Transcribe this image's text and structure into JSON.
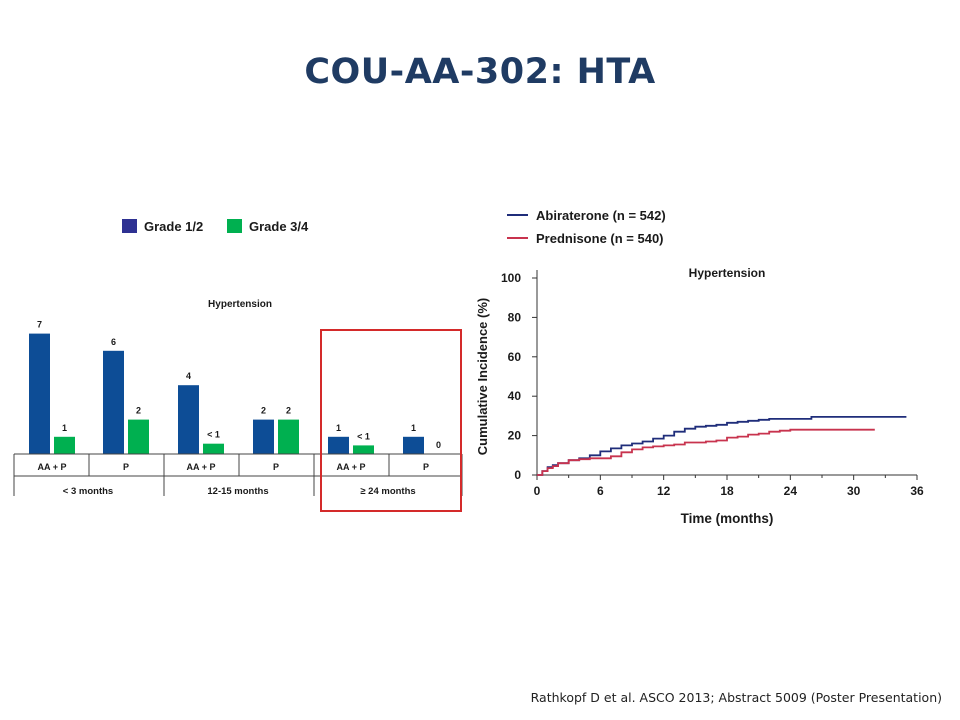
{
  "title": "COU-AA-302: HTA",
  "citation": "Rathkopf D et al. ASCO 2013; Abstract 5009 (Poster Presentation)",
  "colors": {
    "title": "#1f3b63",
    "grade12": "#0d4d96",
    "grade12_legend": "#2e3192",
    "grade34": "#00b050",
    "highlight": "#d42a2a",
    "abiraterone": "#1f2d7a",
    "prednisone": "#c8334e"
  },
  "chart_data": [
    {
      "type": "bar",
      "title": "Hypertension",
      "legend": [
        "Grade 1/2",
        "Grade 3/4"
      ],
      "groups": [
        {
          "label": "< 3 months",
          "bars": [
            {
              "category": "AA + P",
              "values": [
                7,
                1
              ],
              "labels": [
                "7",
                "1"
              ]
            },
            {
              "category": "P",
              "values": [
                6,
                2
              ],
              "labels": [
                "6",
                "2"
              ]
            }
          ]
        },
        {
          "label": "12-15 months",
          "bars": [
            {
              "category": "AA + P",
              "values": [
                4,
                0.6
              ],
              "labels": [
                "4",
                "< 1"
              ]
            },
            {
              "category": "P",
              "values": [
                2,
                2
              ],
              "labels": [
                "2",
                "2"
              ]
            }
          ]
        },
        {
          "label": "≥ 24 months",
          "highlighted": true,
          "bars": [
            {
              "category": "AA + P",
              "values": [
                1,
                0.5
              ],
              "labels": [
                "1",
                "< 1"
              ]
            },
            {
              "category": "P",
              "values": [
                1,
                0
              ],
              "labels": [
                "1",
                "0"
              ]
            }
          ]
        }
      ]
    },
    {
      "type": "line",
      "title": "Hypertension",
      "xlabel": "Time (months)",
      "ylabel": "Cumulative Incidence (%)",
      "xlim": [
        0,
        36
      ],
      "ylim": [
        0,
        100
      ],
      "xticks": [
        0,
        6,
        12,
        18,
        24,
        30,
        36
      ],
      "yticks": [
        0,
        20,
        40,
        60,
        80,
        100
      ],
      "series": [
        {
          "name": "Abiraterone (n = 542)",
          "x": [
            0,
            0.5,
            1,
            1.5,
            2,
            3,
            4,
            5,
            6,
            7,
            8,
            9,
            10,
            11,
            12,
            13,
            14,
            15,
            16,
            17,
            18,
            19,
            20,
            21,
            22,
            24,
            26,
            28,
            30,
            32,
            34,
            35
          ],
          "y": [
            0,
            2,
            4,
            5,
            6,
            7.5,
            8.5,
            10,
            12,
            13.5,
            15,
            16,
            17,
            18.5,
            20,
            22,
            23.5,
            24.5,
            25,
            25.5,
            26.5,
            27,
            27.5,
            28,
            28.5,
            28.5,
            29.5,
            29.5,
            29.5,
            29.5,
            29.5,
            29.5
          ]
        },
        {
          "name": "Prednisone (n = 540)",
          "x": [
            0,
            0.5,
            1,
            1.5,
            2,
            3,
            4,
            5,
            6,
            7,
            8,
            9,
            10,
            11,
            12,
            13,
            14,
            15,
            16,
            17,
            18,
            19,
            20,
            21,
            22,
            23,
            24,
            26,
            28,
            30,
            32
          ],
          "y": [
            0,
            2,
            3.5,
            4.5,
            6,
            7.5,
            8,
            8.5,
            8.5,
            9.5,
            11.5,
            13,
            14,
            14.5,
            15,
            15.5,
            16.5,
            16.5,
            17,
            17.5,
            19,
            19.5,
            20.5,
            21,
            22,
            22.5,
            23,
            23,
            23,
            23,
            23
          ]
        }
      ]
    }
  ]
}
